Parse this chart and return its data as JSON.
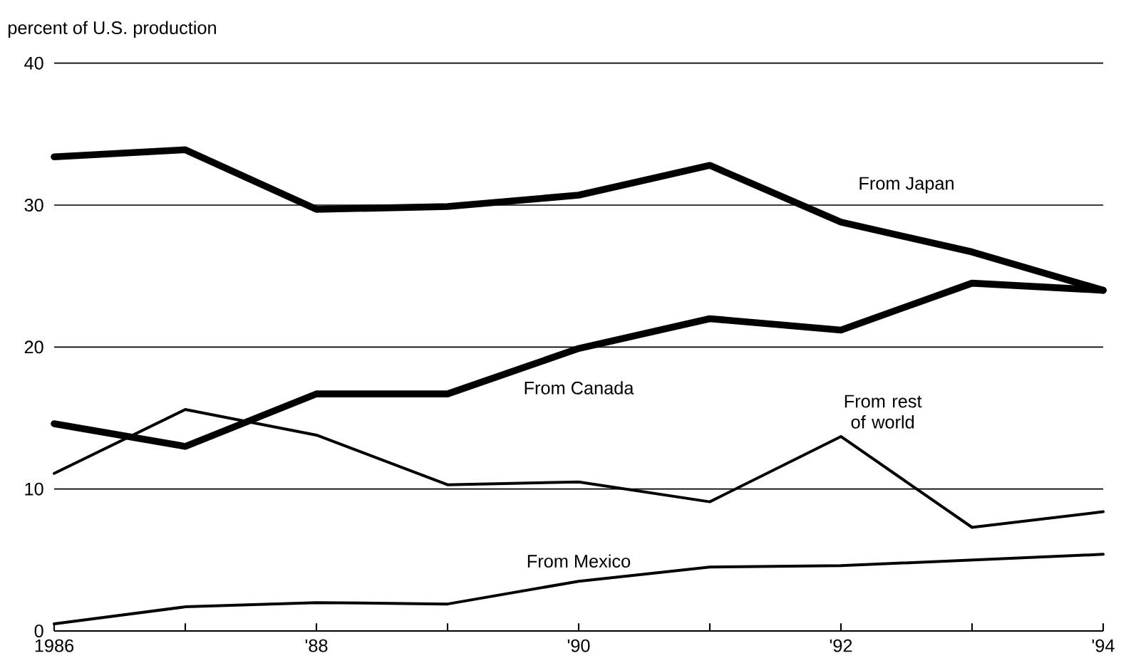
{
  "chart_data": {
    "type": "line",
    "ylabel": "percent of U.S. production",
    "x": [
      1986,
      1987,
      1988,
      1989,
      1990,
      1991,
      1992,
      1993,
      1994
    ],
    "series": [
      {
        "name": "From Japan",
        "color": "#000000",
        "values": [
          33.4,
          33.9,
          29.7,
          29.9,
          30.7,
          32.8,
          28.8,
          26.7,
          24.0
        ]
      },
      {
        "name": "From Canada",
        "color": "#000000",
        "values": [
          14.6,
          13.0,
          16.7,
          16.7,
          19.9,
          22.0,
          21.2,
          24.5,
          24.0
        ]
      },
      {
        "name": "From rest of world",
        "color": "#000000",
        "values": [
          11.1,
          15.6,
          13.8,
          10.3,
          10.5,
          9.1,
          13.7,
          7.3,
          8.4
        ]
      },
      {
        "name": "From Mexico",
        "color": "#000000",
        "values": [
          0.5,
          1.7,
          2.0,
          1.9,
          3.5,
          4.5,
          4.6,
          5.0,
          5.4
        ]
      }
    ],
    "xlim": [
      1986,
      1994
    ],
    "xticks": [
      1986,
      {
        "value": 1987,
        "label": null
      },
      {
        "value": 1988,
        "label": "'88"
      },
      {
        "value": 1989,
        "label": null
      },
      {
        "value": 1990,
        "label": "'90"
      },
      {
        "value": 1991,
        "label": null
      },
      {
        "value": 1992,
        "label": "'92"
      },
      {
        "value": 1993,
        "label": null
      },
      {
        "value": 1994,
        "label": "'94"
      }
    ],
    "ylim": [
      0,
      40
    ],
    "yticks": [
      0,
      10,
      20,
      30,
      40
    ],
    "grid": "y",
    "line_style": "solid",
    "marker": "none"
  }
}
